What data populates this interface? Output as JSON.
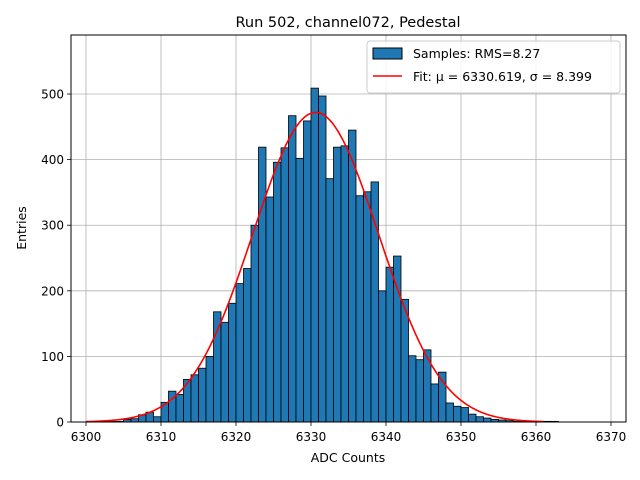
{
  "chart_data": {
    "type": "bar",
    "title": "Run 502, channel072, Pedestal",
    "xlabel": "ADC Counts",
    "ylabel": "Entries",
    "xlim": [
      6298,
      6372
    ],
    "ylim": [
      0,
      590
    ],
    "xticks": [
      6300,
      6310,
      6320,
      6330,
      6340,
      6350,
      6360,
      6370
    ],
    "yticks": [
      0,
      100,
      200,
      300,
      400,
      500
    ],
    "grid": true,
    "legend_position": "top-right",
    "bin_width": 1,
    "bin_left_edges": [
      6303,
      6304,
      6305,
      6306,
      6307,
      6308,
      6309,
      6310,
      6311,
      6312,
      6313,
      6314,
      6315,
      6316,
      6317,
      6318,
      6319,
      6320,
      6321,
      6322,
      6323,
      6324,
      6325,
      6326,
      6327,
      6328,
      6329,
      6330,
      6331,
      6332,
      6333,
      6334,
      6335,
      6336,
      6337,
      6338,
      6339,
      6340,
      6341,
      6342,
      6343,
      6344,
      6345,
      6346,
      6347,
      6348,
      6349,
      6350,
      6351,
      6352,
      6353,
      6354,
      6355,
      6356,
      6357,
      6358,
      6359,
      6360,
      6361,
      6362
    ],
    "counts": [
      1,
      1,
      4,
      5,
      11,
      15,
      8,
      30,
      47,
      42,
      65,
      72,
      82,
      100,
      168,
      152,
      181,
      211,
      234,
      300,
      419,
      343,
      396,
      418,
      467,
      402,
      459,
      509,
      497,
      371,
      419,
      421,
      445,
      345,
      351,
      366,
      200,
      236,
      253,
      187,
      101,
      95,
      110,
      58,
      76,
      29,
      24,
      22,
      12,
      8,
      6,
      4,
      3,
      2,
      1,
      1,
      1,
      1,
      1,
      1
    ],
    "series": [
      {
        "name": "Samples: RMS=8.27",
        "kind": "histogram",
        "color": "#1f77b4",
        "edgecolor": "#000000"
      },
      {
        "name": "Fit: μ = 6330.619, σ = 8.399",
        "kind": "gaussian-fit",
        "color": "#ff0000",
        "mu": 6330.619,
        "sigma": 8.399,
        "amplitude": 472,
        "x_range": [
          6300,
          6361
        ]
      }
    ]
  }
}
